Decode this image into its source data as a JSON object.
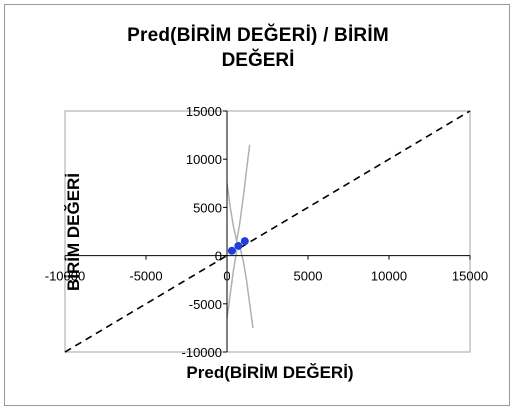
{
  "chart_data": {
    "type": "scatter",
    "title": "Pred(BİRİM  DEĞERİ)  / BİRİM",
    "title_line2": "DEĞERİ",
    "xlabel": "Pred(BİRİM DEĞERİ)",
    "ylabel": "BİRİM DEĞERİ",
    "xlim": [
      -10000,
      15000
    ],
    "ylim": [
      -10000,
      15000
    ],
    "x_ticks": [
      "-10000",
      "-5000",
      "0",
      "5000",
      "10000",
      "15000"
    ],
    "y_ticks": [
      "15000",
      "10000",
      "5000",
      "0",
      "-5000",
      "-10000"
    ],
    "x_tick_values": [
      -10000,
      -5000,
      0,
      5000,
      10000,
      15000
    ],
    "y_tick_values": [
      15000,
      10000,
      5000,
      0,
      -5000,
      -10000
    ],
    "grid": false,
    "colors": {
      "points": "#1f3fd9",
      "reference_line": "#000000",
      "confidence_curves": "#b0b0b0",
      "axes": "#000000"
    },
    "points": [
      {
        "x": 300,
        "y": 500
      },
      {
        "x": 700,
        "y": 1000
      },
      {
        "x": 1100,
        "y": 1500
      }
    ],
    "reference_line": {
      "style": "dashed",
      "from": [
        -10000,
        -10000
      ],
      "to": [
        15000,
        15000
      ]
    },
    "confidence_curves": [
      {
        "name": "upper-left",
        "points": [
          [
            0,
            7500
          ],
          [
            200,
            5000
          ],
          [
            400,
            3000
          ],
          [
            600,
            1500
          ],
          [
            800,
            800
          ]
        ]
      },
      {
        "name": "lower-right",
        "points": [
          [
            800,
            800
          ],
          [
            1000,
            -500
          ],
          [
            1200,
            -2500
          ],
          [
            1400,
            -5000
          ],
          [
            1600,
            -7500
          ]
        ]
      },
      {
        "name": "upper-right",
        "points": [
          [
            600,
            1500
          ],
          [
            800,
            3500
          ],
          [
            1000,
            6000
          ],
          [
            1200,
            8800
          ],
          [
            1400,
            11500
          ]
        ]
      },
      {
        "name": "lower-left",
        "points": [
          [
            600,
            500
          ],
          [
            400,
            -1500
          ],
          [
            200,
            -4000
          ],
          [
            0,
            -6500
          ]
        ]
      }
    ]
  }
}
